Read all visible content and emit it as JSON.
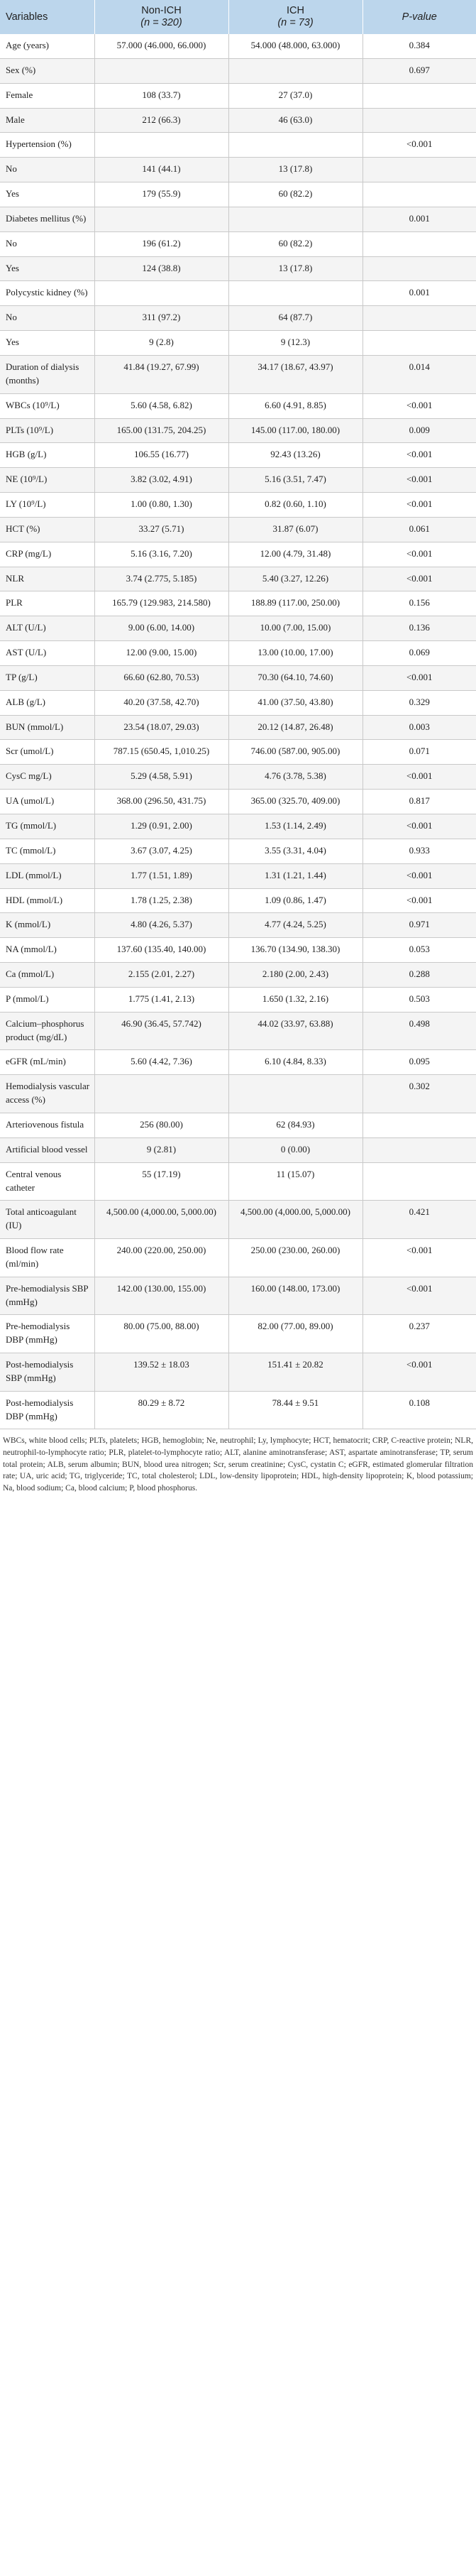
{
  "header": {
    "variables": "Variables",
    "non_ich_line1": "Non-ICH",
    "non_ich_line2": "(n = 320)",
    "ich_line1": "ICH",
    "ich_line2": "(n = 73)",
    "p_value": "P-value"
  },
  "rows": [
    {
      "variable": "Age (years)",
      "non_ich": "57.000 (46.000, 66.000)",
      "ich": "54.000 (48.000, 63.000)",
      "p": "0.384"
    },
    {
      "variable": "Sex (%)",
      "non_ich": "",
      "ich": "",
      "p": "0.697"
    },
    {
      "variable": "Female",
      "non_ich": "108 (33.7)",
      "ich": "27 (37.0)",
      "p": ""
    },
    {
      "variable": "Male",
      "non_ich": "212 (66.3)",
      "ich": "46 (63.0)",
      "p": ""
    },
    {
      "variable": "Hypertension (%)",
      "non_ich": "",
      "ich": "",
      "p": "<0.001"
    },
    {
      "variable": "No",
      "non_ich": "141 (44.1)",
      "ich": "13 (17.8)",
      "p": ""
    },
    {
      "variable": "Yes",
      "non_ich": "179 (55.9)",
      "ich": "60 (82.2)",
      "p": ""
    },
    {
      "variable": "Diabetes mellitus (%)",
      "non_ich": "",
      "ich": "",
      "p": "0.001"
    },
    {
      "variable": "No",
      "non_ich": "196 (61.2)",
      "ich": "60 (82.2)",
      "p": ""
    },
    {
      "variable": "Yes",
      "non_ich": "124 (38.8)",
      "ich": "13 (17.8)",
      "p": ""
    },
    {
      "variable": "Polycystic kidney (%)",
      "non_ich": "",
      "ich": "",
      "p": "0.001"
    },
    {
      "variable": "No",
      "non_ich": "311 (97.2)",
      "ich": "64 (87.7)",
      "p": ""
    },
    {
      "variable": "Yes",
      "non_ich": "9 (2.8)",
      "ich": "9 (12.3)",
      "p": ""
    },
    {
      "variable": "Duration of dialysis (months)",
      "non_ich": "41.84 (19.27, 67.99)",
      "ich": "34.17 (18.67, 43.97)",
      "p": "0.014"
    },
    {
      "variable": "WBCs (10⁹/L)",
      "non_ich": "5.60 (4.58, 6.82)",
      "ich": "6.60 (4.91, 8.85)",
      "p": "<0.001"
    },
    {
      "variable": "PLTs (10⁹/L)",
      "non_ich": "165.00 (131.75, 204.25)",
      "ich": "145.00 (117.00, 180.00)",
      "p": "0.009"
    },
    {
      "variable": "HGB (g/L)",
      "non_ich": "106.55 (16.77)",
      "ich": "92.43 (13.26)",
      "p": "<0.001"
    },
    {
      "variable": "NE (10⁹/L)",
      "non_ich": "3.82 (3.02, 4.91)",
      "ich": "5.16 (3.51, 7.47)",
      "p": "<0.001"
    },
    {
      "variable": "LY (10⁹/L)",
      "non_ich": "1.00 (0.80, 1.30)",
      "ich": "0.82 (0.60, 1.10)",
      "p": "<0.001"
    },
    {
      "variable": "HCT (%)",
      "non_ich": "33.27 (5.71)",
      "ich": "31.87 (6.07)",
      "p": "0.061"
    },
    {
      "variable": "CRP (mg/L)",
      "non_ich": "5.16 (3.16, 7.20)",
      "ich": "12.00 (4.79, 31.48)",
      "p": "<0.001"
    },
    {
      "variable": "NLR",
      "non_ich": "3.74 (2.775, 5.185)",
      "ich": "5.40 (3.27, 12.26)",
      "p": "<0.001"
    },
    {
      "variable": "PLR",
      "non_ich": "165.79 (129.983, 214.580)",
      "ich": "188.89 (117.00, 250.00)",
      "p": "0.156"
    },
    {
      "variable": "ALT (U/L)",
      "non_ich": "9.00 (6.00, 14.00)",
      "ich": "10.00 (7.00, 15.00)",
      "p": "0.136"
    },
    {
      "variable": "AST (U/L)",
      "non_ich": "12.00 (9.00, 15.00)",
      "ich": "13.00 (10.00, 17.00)",
      "p": "0.069"
    },
    {
      "variable": "TP (g/L)",
      "non_ich": "66.60 (62.80, 70.53)",
      "ich": "70.30 (64.10, 74.60)",
      "p": "<0.001"
    },
    {
      "variable": "ALB (g/L)",
      "non_ich": "40.20 (37.58, 42.70)",
      "ich": "41.00 (37.50, 43.80)",
      "p": "0.329"
    },
    {
      "variable": "BUN (mmol/L)",
      "non_ich": "23.54 (18.07, 29.03)",
      "ich": "20.12 (14.87, 26.48)",
      "p": "0.003"
    },
    {
      "variable": "Scr (umol/L)",
      "non_ich": "787.15 (650.45, 1,010.25)",
      "ich": "746.00 (587.00, 905.00)",
      "p": "0.071"
    },
    {
      "variable": "CysC mg/L)",
      "non_ich": "5.29 (4.58, 5.91)",
      "ich": "4.76 (3.78, 5.38)",
      "p": "<0.001"
    },
    {
      "variable": "UA (umol/L)",
      "non_ich": "368.00 (296.50, 431.75)",
      "ich": "365.00 (325.70, 409.00)",
      "p": "0.817"
    },
    {
      "variable": "TG (mmol/L)",
      "non_ich": "1.29 (0.91, 2.00)",
      "ich": "1.53 (1.14, 2.49)",
      "p": "<0.001"
    },
    {
      "variable": "TC (mmol/L)",
      "non_ich": "3.67 (3.07, 4.25)",
      "ich": "3.55 (3.31, 4.04)",
      "p": "0.933"
    },
    {
      "variable": "LDL (mmol/L)",
      "non_ich": "1.77 (1.51, 1.89)",
      "ich": "1.31 (1.21, 1.44)",
      "p": "<0.001"
    },
    {
      "variable": "HDL (mmol/L)",
      "non_ich": "1.78 (1.25, 2.38)",
      "ich": "1.09 (0.86, 1.47)",
      "p": "<0.001"
    },
    {
      "variable": "K (mmol/L)",
      "non_ich": "4.80 (4.26, 5.37)",
      "ich": "4.77 (4.24, 5.25)",
      "p": "0.971"
    },
    {
      "variable": "NA (mmol/L)",
      "non_ich": "137.60 (135.40, 140.00)",
      "ich": "136.70 (134.90, 138.30)",
      "p": "0.053"
    },
    {
      "variable": "Ca (mmol/L)",
      "non_ich": "2.155 (2.01, 2.27)",
      "ich": "2.180 (2.00, 2.43)",
      "p": "0.288"
    },
    {
      "variable": "P (mmol/L)",
      "non_ich": "1.775 (1.41, 2.13)",
      "ich": "1.650 (1.32, 2.16)",
      "p": "0.503"
    },
    {
      "variable": "Calcium–phosphorus product (mg/dL)",
      "non_ich": "46.90 (36.45, 57.742)",
      "ich": "44.02 (33.97, 63.88)",
      "p": "0.498"
    },
    {
      "variable": "eGFR (mL/min)",
      "non_ich": "5.60 (4.42, 7.36)",
      "ich": "6.10 (4.84, 8.33)",
      "p": "0.095"
    },
    {
      "variable": "Hemodialysis vascular access (%)",
      "non_ich": "",
      "ich": "",
      "p": "0.302"
    },
    {
      "variable": "Arteriovenous fistula",
      "non_ich": "256 (80.00)",
      "ich": "62 (84.93)",
      "p": ""
    },
    {
      "variable": "Artificial blood vessel",
      "non_ich": "9 (2.81)",
      "ich": "0 (0.00)",
      "p": ""
    },
    {
      "variable": "Central venous catheter",
      "non_ich": "55 (17.19)",
      "ich": "11 (15.07)",
      "p": ""
    },
    {
      "variable": "Total anticoagulant (IU)",
      "non_ich": "4,500.00 (4,000.00, 5,000.00)",
      "ich": "4,500.00 (4,000.00, 5,000.00)",
      "p": "0.421"
    },
    {
      "variable": "Blood flow rate (ml/min)",
      "non_ich": "240.00 (220.00, 250.00)",
      "ich": "250.00 (230.00, 260.00)",
      "p": "<0.001"
    },
    {
      "variable": "Pre-hemodialysis SBP (mmHg)",
      "non_ich": "142.00 (130.00, 155.00)",
      "ich": "160.00 (148.00, 173.00)",
      "p": "<0.001"
    },
    {
      "variable": "Pre-hemodialysis DBP (mmHg)",
      "non_ich": "80.00 (75.00, 88.00)",
      "ich": "82.00 (77.00, 89.00)",
      "p": "0.237"
    },
    {
      "variable": "Post-hemodialysis SBP (mmHg)",
      "non_ich": "139.52 ± 18.03",
      "ich": "151.41 ± 20.82",
      "p": "<0.001"
    },
    {
      "variable": "Post-hemodialysis DBP (mmHg)",
      "non_ich": "80.29 ± 8.72",
      "ich": "78.44 ± 9.51",
      "p": "0.108"
    }
  ],
  "footnote": "WBCs, white blood cells; PLTs, platelets; HGB, hemoglobin; Ne, neutrophil; Ly, lymphocyte; HCT, hematocrit; CRP, C-reactive protein; NLR, neutrophil-to-lymphocyte ratio; PLR, platelet-to-lymphocyte ratio; ALT, alanine aminotransferase; AST, aspartate aminotransferase; TP, serum total protein; ALB, serum albumin; BUN, blood urea nitrogen; Scr, serum creatinine; CysC, cystatin C; eGFR, estimated glomerular filtration rate; UA, uric acid; TG, triglyceride; TC, total cholesterol; LDL, low-density lipoprotein; HDL, high-density lipoprotein; K, blood potassium; Na, blood sodium; Ca, blood calcium; P, blood phosphorus.",
  "colors": {
    "header_bg": "#bcd6ec",
    "stripe_bg": "#f4f4f4",
    "grid_line": "#c9c9c9"
  }
}
